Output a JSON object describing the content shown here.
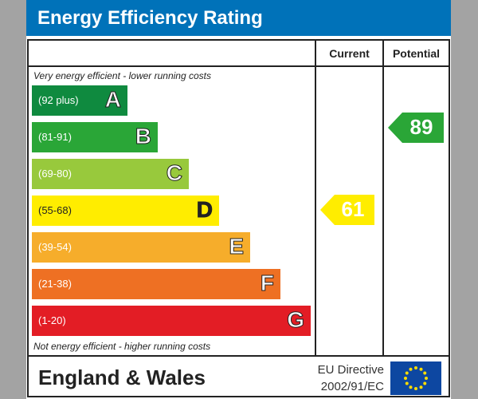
{
  "title": "Energy Efficiency Rating",
  "columns": {
    "current": "Current",
    "potential": "Potential"
  },
  "notes": {
    "top": "Very energy efficient - lower running costs",
    "bottom": "Not energy efficient - higher running costs"
  },
  "bands": [
    {
      "range": "(92 plus)",
      "letter": "A",
      "color": "#0f8a3f"
    },
    {
      "range": "(81-91)",
      "letter": "B",
      "color": "#2aa637"
    },
    {
      "range": "(69-80)",
      "letter": "C",
      "color": "#98c93c"
    },
    {
      "range": "(55-68)",
      "letter": "D",
      "color": "#ffed00"
    },
    {
      "range": "(39-54)",
      "letter": "E",
      "color": "#f6ad2b"
    },
    {
      "range": "(21-38)",
      "letter": "F",
      "color": "#ee7023"
    },
    {
      "range": "(1-20)",
      "letter": "G",
      "color": "#e31d25"
    }
  ],
  "current": {
    "value": "61",
    "band": "D",
    "color": "#ffed00"
  },
  "potential": {
    "value": "89",
    "band": "B",
    "color": "#2aa637"
  },
  "footer": {
    "region": "England & Wales",
    "directive_line1": "EU Directive",
    "directive_line2": "2002/91/EC",
    "flag_icon": "eu-flag-icon"
  }
}
